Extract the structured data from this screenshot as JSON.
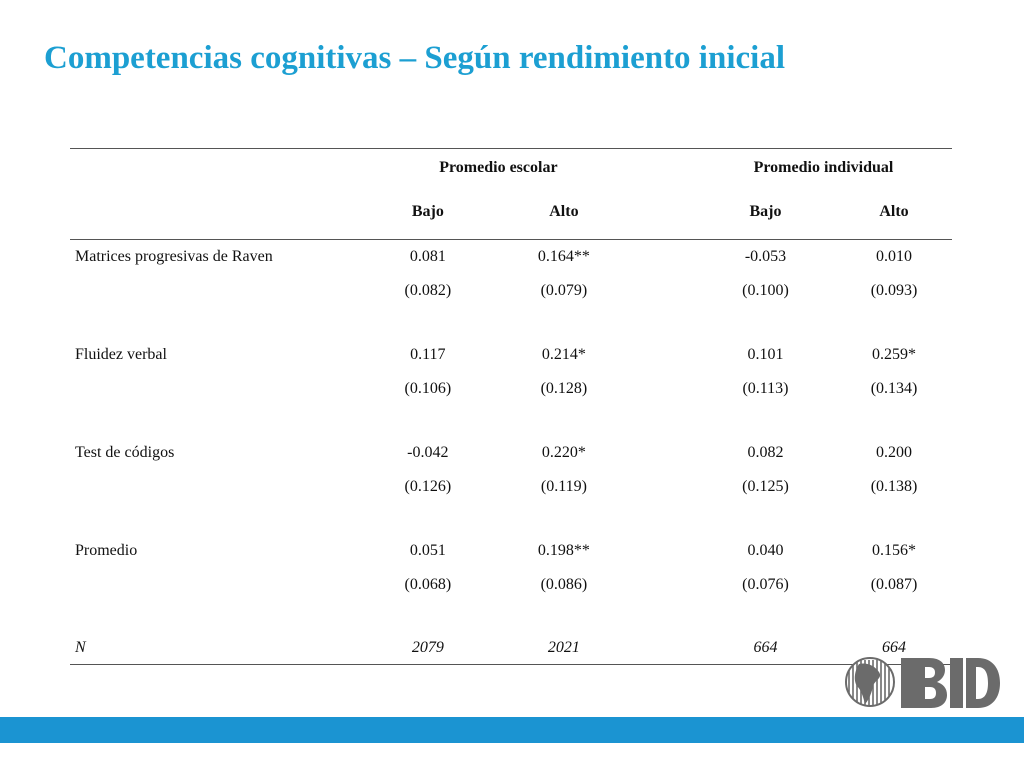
{
  "slide": {
    "title": "Competencias cognitivas – Según rendimiento inicial"
  },
  "table": {
    "groups": [
      "Promedio escolar",
      "Promedio individual"
    ],
    "subheaders": [
      "Bajo",
      "Alto",
      "Bajo",
      "Alto"
    ],
    "rows": [
      {
        "label": "Matrices progresivas de Raven",
        "coef": [
          "0.081",
          "0.164**",
          "-0.053",
          "0.010"
        ],
        "se": [
          "(0.082)",
          "(0.079)",
          "(0.100)",
          "(0.093)"
        ]
      },
      {
        "label": "Fluidez verbal",
        "coef": [
          "0.117",
          "0.214*",
          "0.101",
          "0.259*"
        ],
        "se": [
          "(0.106)",
          "(0.128)",
          "(0.113)",
          "(0.134)"
        ]
      },
      {
        "label": "Test de códigos",
        "coef": [
          "-0.042",
          "0.220*",
          "0.082",
          "0.200"
        ],
        "se": [
          "(0.126)",
          "(0.119)",
          "(0.125)",
          "(0.138)"
        ]
      },
      {
        "label": "Promedio",
        "coef": [
          "0.051",
          "0.198**",
          "0.040",
          "0.156*"
        ],
        "se": [
          "(0.068)",
          "(0.086)",
          "(0.076)",
          "(0.087)"
        ]
      }
    ],
    "n_row": {
      "label": "N",
      "values": [
        "2079",
        "2021",
        "664",
        "664"
      ]
    }
  },
  "logo": {
    "text": "BID"
  },
  "colors": {
    "title": "#1c9fd2",
    "bottom_bar": "#1b94d2",
    "logo": "#6b6b6b"
  }
}
